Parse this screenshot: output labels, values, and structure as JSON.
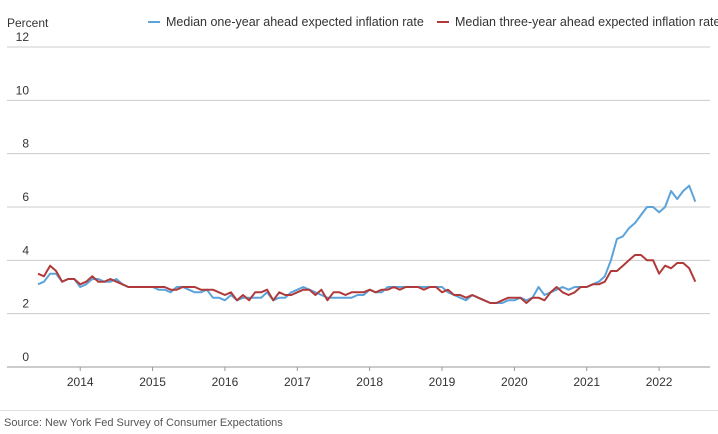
{
  "colors": {
    "one_year": "#5BA3DA",
    "three_year": "#B03A3A",
    "grid": "#cccccc"
  },
  "chart_data": {
    "type": "line",
    "ylabel": "Percent",
    "ylim": [
      0,
      12
    ],
    "yticks": [
      0,
      2,
      4,
      6,
      8,
      10,
      12
    ],
    "x_tick_labels": [
      "2014",
      "2015",
      "2016",
      "2017",
      "2018",
      "2019",
      "2020",
      "2021",
      "2022"
    ],
    "x_start": "2013-06",
    "x_end": "2022-07",
    "grid": true,
    "legend_position": "top",
    "series": [
      {
        "name": "Median one-year ahead expected inflation rate",
        "color": "#5BA3DA",
        "values": [
          3.1,
          3.2,
          3.5,
          3.5,
          3.2,
          3.3,
          3.3,
          3.0,
          3.1,
          3.3,
          3.3,
          3.2,
          3.2,
          3.3,
          3.1,
          3.0,
          3.0,
          3.0,
          3.0,
          3.0,
          2.9,
          2.9,
          2.8,
          3.0,
          3.0,
          2.9,
          2.8,
          2.8,
          2.9,
          2.6,
          2.6,
          2.5,
          2.7,
          2.5,
          2.6,
          2.6,
          2.6,
          2.6,
          2.8,
          2.5,
          2.6,
          2.6,
          2.8,
          2.9,
          3.0,
          2.9,
          2.8,
          2.7,
          2.6,
          2.6,
          2.6,
          2.6,
          2.6,
          2.7,
          2.7,
          2.9,
          2.8,
          2.8,
          3.0,
          3.0,
          3.0,
          3.0,
          3.0,
          3.0,
          3.0,
          3.0,
          3.0,
          3.0,
          2.8,
          2.7,
          2.6,
          2.5,
          2.7,
          2.6,
          2.5,
          2.4,
          2.4,
          2.4,
          2.5,
          2.5,
          2.6,
          2.5,
          2.6,
          3.0,
          2.7,
          2.8,
          2.9,
          3.0,
          2.9,
          3.0,
          3.0,
          3.0,
          3.1,
          3.2,
          3.4,
          4.0,
          4.8,
          4.9,
          5.2,
          5.4,
          5.7,
          6.0,
          6.0,
          5.8,
          6.0,
          6.6,
          6.3,
          6.6,
          6.8,
          6.2
        ]
      },
      {
        "name": "Median three-year ahead expected inflation rate",
        "color": "#B03A3A",
        "values": [
          3.5,
          3.4,
          3.8,
          3.6,
          3.2,
          3.3,
          3.3,
          3.1,
          3.2,
          3.4,
          3.2,
          3.2,
          3.3,
          3.2,
          3.1,
          3.0,
          3.0,
          3.0,
          3.0,
          3.0,
          3.0,
          3.0,
          2.9,
          2.9,
          3.0,
          3.0,
          3.0,
          2.9,
          2.9,
          2.9,
          2.8,
          2.7,
          2.8,
          2.5,
          2.7,
          2.5,
          2.8,
          2.8,
          2.9,
          2.5,
          2.8,
          2.7,
          2.7,
          2.8,
          2.9,
          2.9,
          2.7,
          2.9,
          2.5,
          2.8,
          2.8,
          2.7,
          2.8,
          2.8,
          2.8,
          2.9,
          2.8,
          2.9,
          2.9,
          3.0,
          2.9,
          3.0,
          3.0,
          3.0,
          2.9,
          3.0,
          3.0,
          2.8,
          2.9,
          2.7,
          2.7,
          2.6,
          2.7,
          2.6,
          2.5,
          2.4,
          2.4,
          2.5,
          2.6,
          2.6,
          2.6,
          2.4,
          2.6,
          2.6,
          2.5,
          2.8,
          3.0,
          2.8,
          2.7,
          2.8,
          3.0,
          3.0,
          3.1,
          3.1,
          3.2,
          3.6,
          3.6,
          3.8,
          4.0,
          4.2,
          4.2,
          4.0,
          4.0,
          3.5,
          3.8,
          3.7,
          3.9,
          3.9,
          3.7,
          3.2
        ]
      }
    ],
    "source": "Source: New York Fed Survey of Consumer Expectations"
  }
}
